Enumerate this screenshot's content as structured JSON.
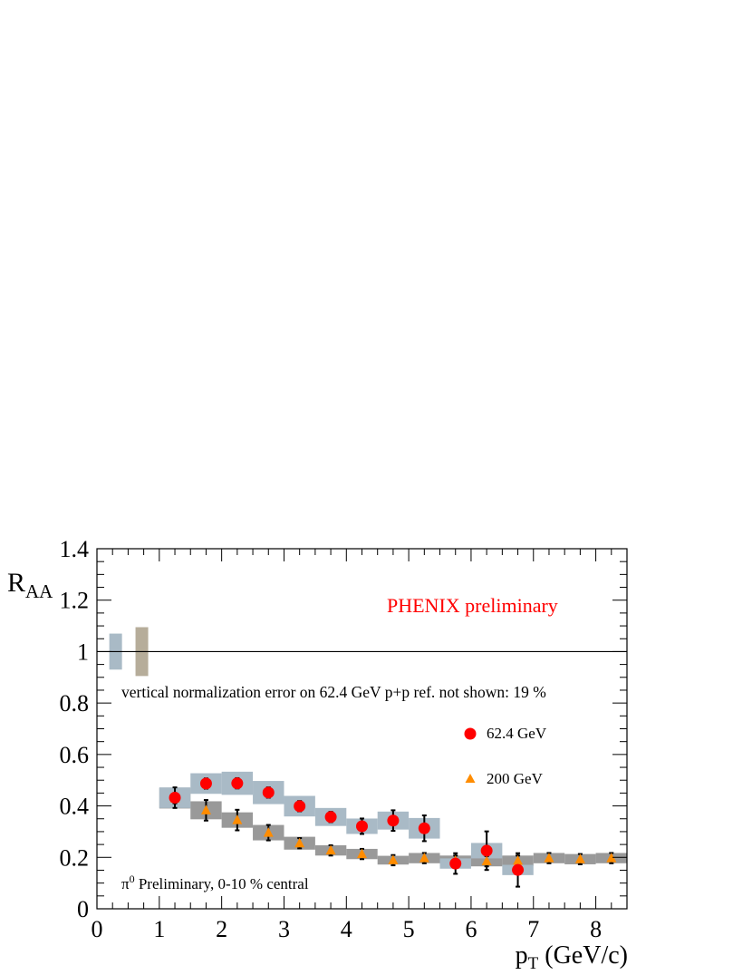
{
  "chart_data": {
    "type": "scatter",
    "title": "",
    "xlabel_main": "p",
    "xlabel_sub": "T",
    "xlabel_rest": " (GeV/c)",
    "ylabel_main": "R",
    "ylabel_sub": "AA",
    "xlim": [
      0,
      8.5
    ],
    "ylim": [
      0,
      1.4
    ],
    "x_ticks": [
      0,
      1,
      2,
      3,
      4,
      5,
      6,
      7,
      8
    ],
    "y_ticks": [
      0,
      0.2,
      0.4,
      0.6,
      0.8,
      1,
      1.2,
      1.4
    ],
    "y_tick_labels": [
      "0",
      "0.2",
      "0.4",
      "0.6",
      "0.8",
      "1",
      "1.2",
      "1.4"
    ],
    "reference_line_y": 1,
    "annotations": {
      "experiment": "PHENIX preliminary",
      "norm_note": "vertical normalization error on 62.4 GeV p+p ref. not shown: 19 %",
      "centrality_sym": "π",
      "centrality_sup": "0",
      "centrality_rest": " Preliminary, 0-10 % central"
    },
    "normalization_bands": [
      {
        "series": "62.4 GeV",
        "x": 0.3,
        "ylow": 0.93,
        "yhigh": 1.07,
        "color": "#a9bac6"
      },
      {
        "series": "200 GeV",
        "x": 0.72,
        "ylow": 0.905,
        "yhigh": 1.095,
        "color": "#b6ad9a"
      }
    ],
    "series": [
      {
        "name": "62.4 GeV",
        "marker": "circle",
        "color": "#ff0000",
        "band_color": "#a9bac6",
        "x": [
          1.25,
          1.75,
          2.25,
          2.75,
          3.25,
          3.75,
          4.25,
          4.75,
          5.25,
          5.75,
          6.25,
          6.75
        ],
        "y": [
          0.432,
          0.487,
          0.488,
          0.452,
          0.399,
          0.357,
          0.321,
          0.343,
          0.313,
          0.176,
          0.226,
          0.151
        ],
        "err": [
          0.04,
          0.02,
          0.02,
          0.02,
          0.02,
          0.02,
          0.03,
          0.04,
          0.05,
          0.04,
          0.075,
          0.065
        ],
        "sys": [
          0.04,
          0.04,
          0.045,
          0.045,
          0.04,
          0.035,
          0.03,
          0.035,
          0.04,
          0.02,
          0.03,
          0.02
        ]
      },
      {
        "name": "200 GeV",
        "marker": "triangle",
        "color": "#ff8c00",
        "band_color": "#999999",
        "x": [
          1.25,
          1.75,
          2.25,
          2.75,
          3.25,
          3.75,
          4.25,
          4.75,
          5.25,
          5.75,
          6.25,
          6.75,
          7.25,
          7.75,
          8.25
        ],
        "y": [
          0.43,
          0.383,
          0.345,
          0.296,
          0.255,
          0.227,
          0.213,
          0.189,
          0.197,
          0.187,
          0.185,
          0.187,
          0.197,
          0.193,
          0.197
        ],
        "err": [
          0.02,
          0.04,
          0.04,
          0.03,
          0.02,
          0.02,
          0.02,
          0.02,
          0.02,
          0.02,
          0.02,
          0.02,
          0.02,
          0.02,
          0.02
        ],
        "sys": [
          0.04,
          0.035,
          0.03,
          0.03,
          0.025,
          0.02,
          0.02,
          0.017,
          0.02,
          0.02,
          0.02,
          0.02,
          0.02,
          0.02,
          0.02
        ]
      }
    ]
  }
}
